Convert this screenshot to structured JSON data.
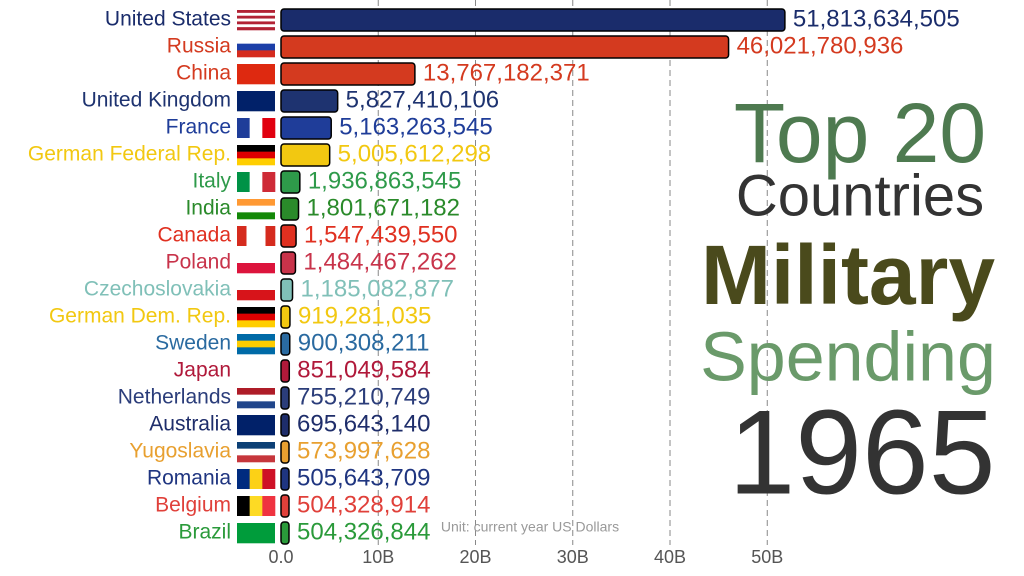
{
  "chart_data": {
    "type": "bar",
    "orientation": "horizontal",
    "title_lines": [
      "Top 20",
      "Countries",
      "Military",
      "Spending"
    ],
    "year": "1965",
    "xlabel": "Unit: current year US Dollars",
    "categories": [
      "United States",
      "Russia",
      "China",
      "United Kingdom",
      "France",
      "German Federal Rep.",
      "Italy",
      "India",
      "Canada",
      "Poland",
      "Czechoslovakia",
      "German Dem. Rep.",
      "Sweden",
      "Japan",
      "Netherlands",
      "Australia",
      "Yugoslavia",
      "Romania",
      "Belgium",
      "Brazil"
    ],
    "values": [
      51813634505,
      46021780936,
      13767182371,
      5827410106,
      5163263545,
      5005612298,
      1936863545,
      1801671182,
      1547439550,
      1484467262,
      1185082877,
      919281035,
      900308211,
      851049584,
      755210749,
      695643140,
      573997628,
      505643709,
      504328914,
      504326844
    ],
    "value_labels": [
      "51,813,634,505",
      "46,021,780,936",
      "13,767,182,371",
      "5,827,410,106",
      "5,163,263,545",
      "5,005,612,298",
      "1,936,863,545",
      "1,801,671,182",
      "1,547,439,550",
      "1,484,467,262",
      "1,185,082,877",
      "919,281,035",
      "900,308,211",
      "851,049,584",
      "755,210,749",
      "695,643,140",
      "573,997,628",
      "505,643,709",
      "504,328,914",
      "504,326,844"
    ],
    "colors": [
      "#1a2c6b",
      "#d43a1f",
      "#d43a1f",
      "#1e3370",
      "#1f3d99",
      "#f2c811",
      "#2e9a4a",
      "#2a8a2a",
      "#e03020",
      "#c8334a",
      "#80c0b8",
      "#f2c811",
      "#2a6aa0",
      "#b0193a",
      "#2b3d7a",
      "#1e2d6a",
      "#e8a030",
      "#1f3580",
      "#e0403a",
      "#2a9a3a"
    ],
    "xlim": [
      0,
      76400000000
    ],
    "xticks": [
      {
        "value": 0,
        "label": "0.0"
      },
      {
        "value": 10000000000,
        "label": "10B"
      },
      {
        "value": 20000000000,
        "label": "20B"
      },
      {
        "value": 30000000000,
        "label": "30B"
      },
      {
        "value": 40000000000,
        "label": "40B"
      },
      {
        "value": 50000000000,
        "label": "50B"
      }
    ],
    "grid": true
  }
}
